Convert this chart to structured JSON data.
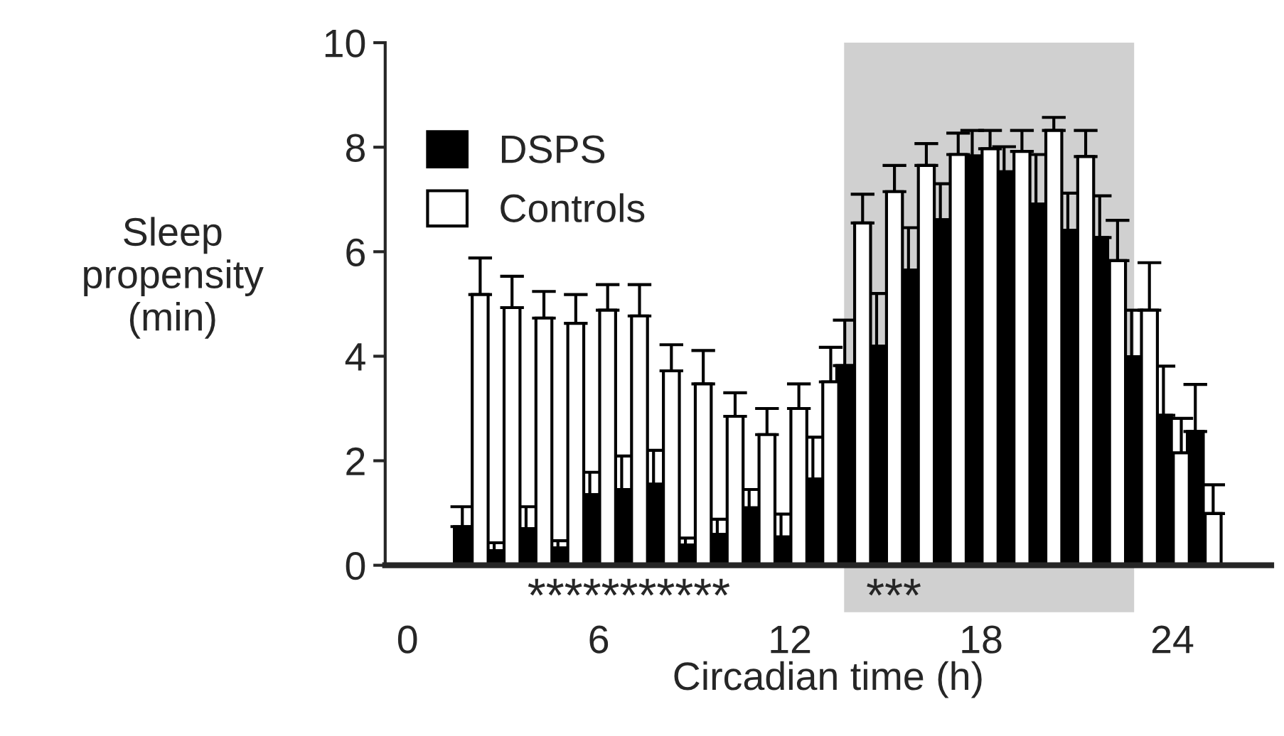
{
  "chart_data": {
    "type": "bar",
    "xlabel": "Circadian time (h)",
    "ylabel": "Sleep\npropensity\n(min)",
    "x": [
      2,
      3,
      4,
      5,
      6,
      7,
      8,
      9,
      10,
      11,
      12,
      13,
      14,
      15,
      16,
      17,
      18,
      19,
      20,
      21,
      22,
      23,
      24,
      25
    ],
    "series": [
      {
        "name": "DSPS",
        "color": "#000000",
        "values": [
          0.74,
          0.28,
          0.7,
          0.33,
          1.35,
          1.45,
          1.55,
          0.39,
          0.59,
          1.1,
          0.54,
          1.65,
          3.82,
          4.19,
          5.65,
          6.61,
          7.83,
          7.53,
          6.91,
          6.41,
          6.27,
          3.99,
          2.87,
          2.56
        ],
        "errors": [
          [
            0.74,
            1.12
          ],
          [
            0.28,
            0.43
          ],
          [
            0.7,
            1.12
          ],
          [
            0.33,
            0.47
          ],
          [
            1.35,
            1.78
          ],
          [
            1.45,
            2.09
          ],
          [
            1.55,
            2.2
          ],
          [
            0.39,
            0.52
          ],
          [
            0.59,
            0.88
          ],
          [
            1.1,
            1.45
          ],
          [
            0.54,
            0.98
          ],
          [
            1.65,
            2.45
          ],
          [
            3.82,
            4.69
          ],
          [
            4.19,
            5.2
          ],
          [
            5.65,
            6.46
          ],
          [
            6.61,
            7.3
          ],
          [
            7.83,
            8.32
          ],
          [
            7.53,
            8.01
          ],
          [
            6.91,
            7.86
          ],
          [
            6.41,
            7.12
          ],
          [
            6.27,
            7.07
          ],
          [
            3.99,
            4.88
          ],
          [
            2.87,
            3.81
          ],
          [
            2.56,
            3.46
          ]
        ]
      },
      {
        "name": "Controls",
        "color": "#ffffff",
        "values": [
          5.18,
          4.93,
          4.73,
          4.63,
          4.88,
          4.77,
          3.72,
          3.47,
          2.85,
          2.5,
          3.0,
          3.51,
          6.55,
          7.15,
          7.65,
          7.86,
          7.97,
          7.92,
          8.32,
          7.82,
          5.83,
          4.88,
          2.15,
          0.99
        ],
        "errors": [
          [
            5.18,
            5.88
          ],
          [
            4.93,
            5.53
          ],
          [
            4.73,
            5.24
          ],
          [
            4.63,
            5.18
          ],
          [
            4.88,
            5.37
          ],
          [
            4.77,
            5.37
          ],
          [
            3.72,
            4.22
          ],
          [
            3.47,
            4.11
          ],
          [
            2.85,
            3.3
          ],
          [
            2.5,
            3.0
          ],
          [
            3.0,
            3.47
          ],
          [
            3.51,
            4.17
          ],
          [
            6.55,
            7.1
          ],
          [
            7.15,
            7.65
          ],
          [
            7.65,
            8.07
          ],
          [
            7.86,
            8.27
          ],
          [
            7.97,
            8.32
          ],
          [
            7.92,
            8.32
          ],
          [
            8.32,
            8.57
          ],
          [
            7.82,
            8.32
          ],
          [
            5.83,
            6.6
          ],
          [
            4.88,
            5.79
          ],
          [
            2.15,
            2.81
          ],
          [
            0.99,
            1.54
          ]
        ]
      }
    ],
    "xlim": [
      -0.7,
      27.1
    ],
    "xticks": [
      0,
      6,
      12,
      18,
      24
    ],
    "ylim": [
      0,
      10
    ],
    "yticks": [
      0,
      2,
      4,
      6,
      8,
      10
    ],
    "bands": [
      {
        "axis": "x",
        "from": 13.7,
        "to": 22.8,
        "color": "#d0d0d0"
      }
    ],
    "annotations": [
      "***********",
      "***"
    ],
    "legend": "top left",
    "grid": false
  }
}
